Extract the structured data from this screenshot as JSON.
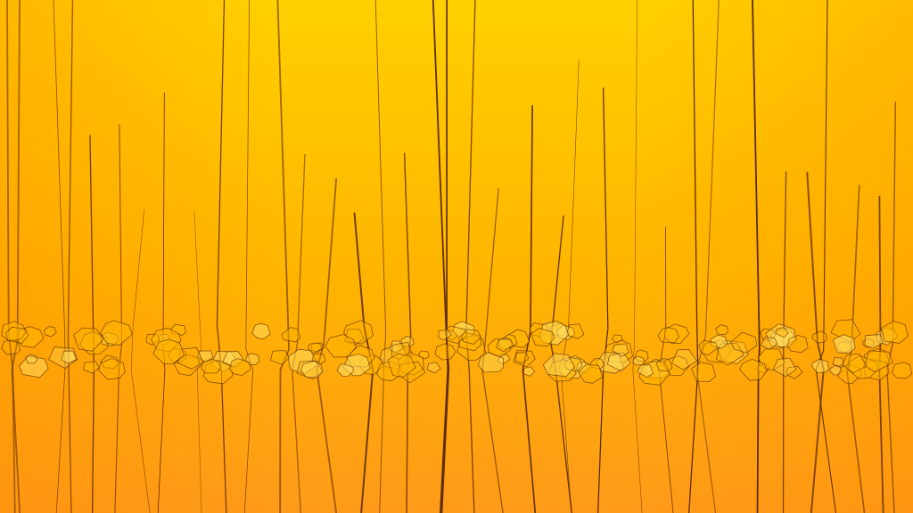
{
  "image": {
    "subject": "abstract-fractured-glass-wallpaper",
    "colors": {
      "top": "#ffd000",
      "middle": "#ffb400",
      "bottom": "#ff9a1a",
      "crack": "#5a2a00",
      "highlight": "#ffe066"
    }
  }
}
